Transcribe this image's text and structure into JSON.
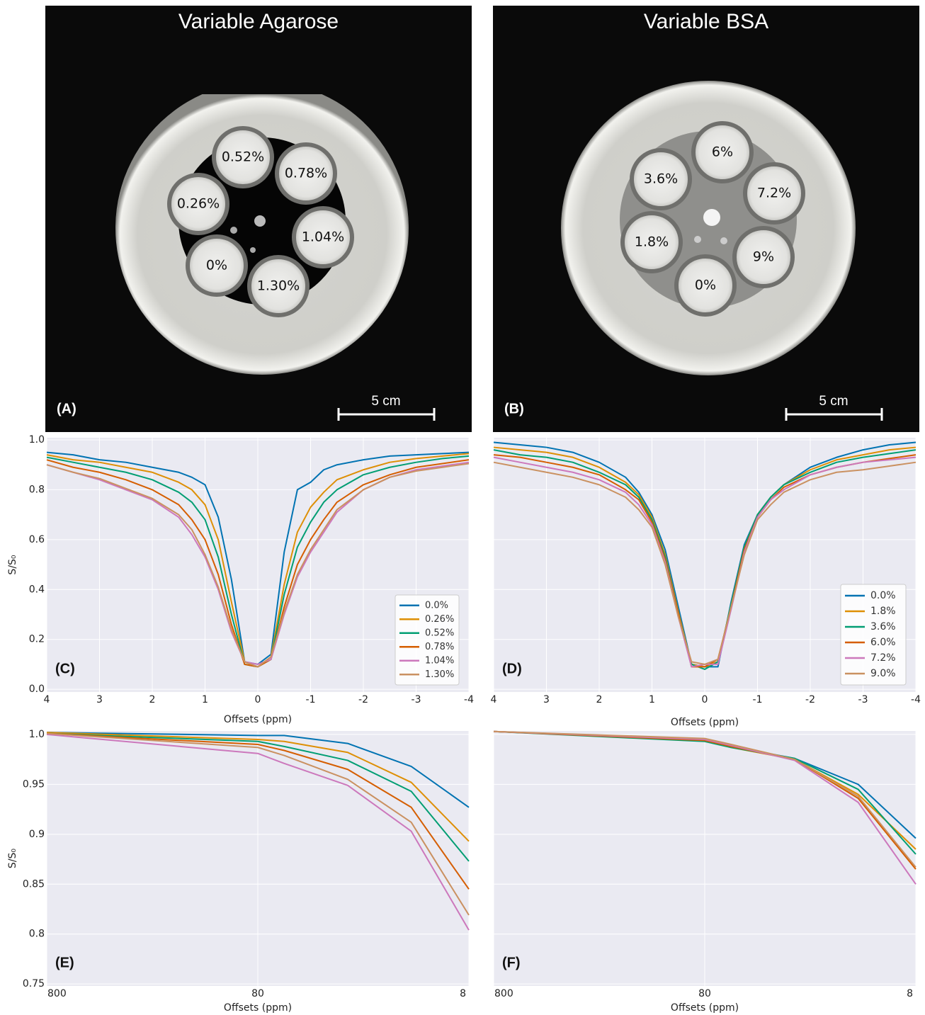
{
  "images": [
    {
      "title": "Variable Agarose",
      "panel_label": "(A)",
      "scale_bar": "5 cm",
      "vials": [
        "0.52%",
        "0.78%",
        "0.26%",
        "1.04%",
        "0%",
        "1.30%"
      ]
    },
    {
      "title": "Variable BSA",
      "panel_label": "(B)",
      "scale_bar": "5 cm",
      "vials": [
        "6%",
        "3.6%",
        "7.2%",
        "1.8%",
        "9%",
        "0%"
      ]
    }
  ],
  "chart_data": [
    {
      "type": "line",
      "panel_label": "(C)",
      "xlabel": "Offsets (ppm)",
      "ylabel": "S/S₀",
      "grid": true,
      "legend": "lower right",
      "xlim": [
        4,
        -4
      ],
      "xticks": [
        4,
        3,
        2,
        1,
        0,
        -1,
        -2,
        -3,
        -4
      ],
      "ylim": [
        -0.011,
        1.0085
      ],
      "yticks": [
        {
          "value": 0,
          "label": "0.0"
        },
        0.2,
        0.4,
        0.6,
        0.8,
        {
          "value": 1,
          "label": "1.0"
        }
      ],
      "x": [
        4,
        3.5,
        3,
        2.5,
        2,
        1.5,
        1.25,
        1,
        0.75,
        0.5,
        0.25,
        0,
        -0.25,
        -0.5,
        -0.75,
        -1,
        -1.25,
        -1.5,
        -2,
        -2.5,
        -3,
        -3.5,
        -4
      ],
      "series": [
        {
          "name": "0.0%",
          "color": "#0173b2",
          "values": [
            0.95,
            0.94,
            0.92,
            0.91,
            0.89,
            0.87,
            0.85,
            0.82,
            0.69,
            0.44,
            0.11,
            0.1,
            0.14,
            0.55,
            0.8,
            0.83,
            0.88,
            0.9,
            0.92,
            0.935,
            0.94,
            0.945,
            0.95
          ]
        },
        {
          "name": "0.26%",
          "color": "#de8f05",
          "values": [
            0.94,
            0.92,
            0.91,
            0.89,
            0.87,
            0.83,
            0.8,
            0.74,
            0.6,
            0.35,
            0.11,
            0.09,
            0.13,
            0.42,
            0.63,
            0.73,
            0.79,
            0.84,
            0.88,
            0.91,
            0.925,
            0.935,
            0.945
          ]
        },
        {
          "name": "0.52%",
          "color": "#029e73",
          "values": [
            0.93,
            0.91,
            0.89,
            0.87,
            0.84,
            0.79,
            0.75,
            0.68,
            0.53,
            0.3,
            0.1,
            0.09,
            0.12,
            0.38,
            0.57,
            0.67,
            0.75,
            0.8,
            0.86,
            0.89,
            0.91,
            0.925,
            0.935
          ]
        },
        {
          "name": "0.78%",
          "color": "#d55e00",
          "values": [
            0.92,
            0.89,
            0.87,
            0.84,
            0.8,
            0.74,
            0.68,
            0.6,
            0.46,
            0.26,
            0.1,
            0.09,
            0.12,
            0.33,
            0.5,
            0.6,
            0.68,
            0.75,
            0.82,
            0.86,
            0.89,
            0.905,
            0.92
          ]
        },
        {
          "name": "1.04%",
          "color": "#cc78bc",
          "values": [
            0.9,
            0.87,
            0.84,
            0.8,
            0.76,
            0.69,
            0.62,
            0.53,
            0.4,
            0.23,
            0.11,
            0.1,
            0.12,
            0.3,
            0.45,
            0.55,
            0.63,
            0.71,
            0.8,
            0.85,
            0.88,
            0.895,
            0.91
          ]
        },
        {
          "name": "1.30%",
          "color": "#ca9161",
          "values": [
            0.9,
            0.87,
            0.845,
            0.805,
            0.765,
            0.7,
            0.64,
            0.54,
            0.41,
            0.24,
            0.11,
            0.09,
            0.13,
            0.31,
            0.46,
            0.56,
            0.64,
            0.72,
            0.8,
            0.85,
            0.875,
            0.89,
            0.905
          ]
        }
      ]
    },
    {
      "type": "line",
      "panel_label": "(D)",
      "xlabel": "Offsets (ppm)",
      "grid": true,
      "legend": "lower right",
      "ytick_labels": false,
      "xlim": [
        4,
        -4
      ],
      "xticks": [
        4,
        3,
        2,
        1,
        0,
        -1,
        -2,
        -3,
        -4
      ],
      "ylim": [
        -0.011,
        1.0085
      ],
      "yticks": [
        {
          "value": 0,
          "label": "0.0"
        },
        0.2,
        0.4,
        0.6,
        0.8,
        {
          "value": 1,
          "label": "1.0"
        }
      ],
      "x": [
        4,
        3.5,
        3,
        2.5,
        2,
        1.5,
        1.25,
        1,
        0.75,
        0.5,
        0.25,
        0,
        -0.25,
        -0.5,
        -0.75,
        -1,
        -1.25,
        -1.5,
        -2,
        -2.5,
        -3,
        -3.5,
        -4
      ],
      "series": [
        {
          "name": "0.0%",
          "color": "#0173b2",
          "values": [
            0.99,
            0.98,
            0.97,
            0.95,
            0.91,
            0.85,
            0.79,
            0.7,
            0.56,
            0.33,
            0.1,
            0.09,
            0.09,
            0.35,
            0.58,
            0.7,
            0.77,
            0.82,
            0.89,
            0.93,
            0.96,
            0.98,
            0.99
          ]
        },
        {
          "name": "1.8%",
          "color": "#de8f05",
          "values": [
            0.97,
            0.96,
            0.95,
            0.93,
            0.89,
            0.83,
            0.78,
            0.69,
            0.54,
            0.31,
            0.1,
            0.09,
            0.11,
            0.34,
            0.57,
            0.7,
            0.77,
            0.82,
            0.88,
            0.92,
            0.94,
            0.96,
            0.97
          ]
        },
        {
          "name": "3.6%",
          "color": "#029e73",
          "values": [
            0.96,
            0.94,
            0.93,
            0.91,
            0.87,
            0.82,
            0.77,
            0.68,
            0.53,
            0.3,
            0.1,
            0.08,
            0.11,
            0.34,
            0.57,
            0.7,
            0.77,
            0.82,
            0.87,
            0.91,
            0.93,
            0.945,
            0.96
          ]
        },
        {
          "name": "6.0%",
          "color": "#d55e00",
          "values": [
            0.94,
            0.93,
            0.91,
            0.89,
            0.86,
            0.8,
            0.76,
            0.67,
            0.52,
            0.3,
            0.09,
            0.09,
            0.12,
            0.33,
            0.56,
            0.69,
            0.76,
            0.81,
            0.86,
            0.89,
            0.91,
            0.925,
            0.94
          ]
        },
        {
          "name": "7.2%",
          "color": "#cc78bc",
          "values": [
            0.93,
            0.91,
            0.89,
            0.87,
            0.84,
            0.79,
            0.74,
            0.66,
            0.51,
            0.29,
            0.09,
            0.1,
            0.1,
            0.32,
            0.55,
            0.69,
            0.76,
            0.8,
            0.86,
            0.89,
            0.91,
            0.92,
            0.93
          ]
        },
        {
          "name": "9.0%",
          "color": "#ca9161",
          "values": [
            0.91,
            0.89,
            0.87,
            0.85,
            0.82,
            0.77,
            0.72,
            0.65,
            0.5,
            0.29,
            0.11,
            0.1,
            0.12,
            0.33,
            0.54,
            0.68,
            0.74,
            0.79,
            0.84,
            0.87,
            0.88,
            0.895,
            0.91
          ]
        }
      ]
    },
    {
      "type": "line",
      "panel_label": "(E)",
      "xlabel": "Offsets (ppm)",
      "ylabel": "S/S₀",
      "grid": true,
      "xscale": "log",
      "xlim": [
        800,
        8
      ],
      "xticks": [
        800,
        80,
        8
      ],
      "ylim": [
        0.748,
        1.0035
      ],
      "yticks": [
        0.75,
        0.8,
        0.85,
        0.9,
        0.95,
        {
          "value": 1,
          "label": "1.0"
        }
      ],
      "x": [
        800,
        80,
        60,
        30,
        15,
        8
      ],
      "series": [
        {
          "name": "0.0%",
          "color": "#0173b2",
          "values": [
            1.002,
            0.999,
            0.999,
            0.991,
            0.968,
            0.927
          ]
        },
        {
          "name": "0.26%",
          "color": "#de8f05",
          "values": [
            1.002,
            0.995,
            0.993,
            0.982,
            0.952,
            0.893
          ]
        },
        {
          "name": "0.52%",
          "color": "#029e73",
          "values": [
            1.001,
            0.993,
            0.988,
            0.974,
            0.943,
            0.873
          ]
        },
        {
          "name": "0.78%",
          "color": "#d55e00",
          "values": [
            1.001,
            0.99,
            0.984,
            0.965,
            0.927,
            0.845
          ]
        },
        {
          "name": "1.04%",
          "color": "#cc78bc",
          "values": [
            1.0,
            0.981,
            0.971,
            0.949,
            0.903,
            0.804
          ]
        },
        {
          "name": "1.30%",
          "color": "#ca9161",
          "values": [
            1.001,
            0.987,
            0.979,
            0.955,
            0.912,
            0.819
          ]
        }
      ]
    },
    {
      "type": "line",
      "panel_label": "(F)",
      "xlabel": "Offsets (ppm)",
      "grid": true,
      "xscale": "log",
      "ytick_labels": false,
      "xlim": [
        800,
        8
      ],
      "xticks": [
        800,
        80,
        8
      ],
      "ylim": [
        0.748,
        1.0035
      ],
      "yticks": [
        0.75,
        0.8,
        0.85,
        0.9,
        0.95,
        {
          "value": 1,
          "label": "1.0"
        }
      ],
      "x": [
        800,
        80,
        60,
        30,
        15,
        8
      ],
      "series": [
        {
          "name": "0.0%",
          "color": "#0173b2",
          "values": [
            1.003,
            0.995,
            0.988,
            0.976,
            0.95,
            0.896
          ]
        },
        {
          "name": "1.8%",
          "color": "#de8f05",
          "values": [
            1.003,
            0.994,
            0.987,
            0.975,
            0.94,
            0.885
          ]
        },
        {
          "name": "3.6%",
          "color": "#029e73",
          "values": [
            1.003,
            0.993,
            0.987,
            0.976,
            0.945,
            0.88
          ]
        },
        {
          "name": "6.0%",
          "color": "#d55e00",
          "values": [
            1.003,
            0.994,
            0.988,
            0.975,
            0.936,
            0.865
          ]
        },
        {
          "name": "7.2%",
          "color": "#cc78bc",
          "values": [
            1.003,
            0.995,
            0.989,
            0.974,
            0.932,
            0.85
          ]
        },
        {
          "name": "9.0%",
          "color": "#ca9161",
          "values": [
            1.003,
            0.996,
            0.99,
            0.975,
            0.938,
            0.867
          ]
        }
      ]
    }
  ]
}
